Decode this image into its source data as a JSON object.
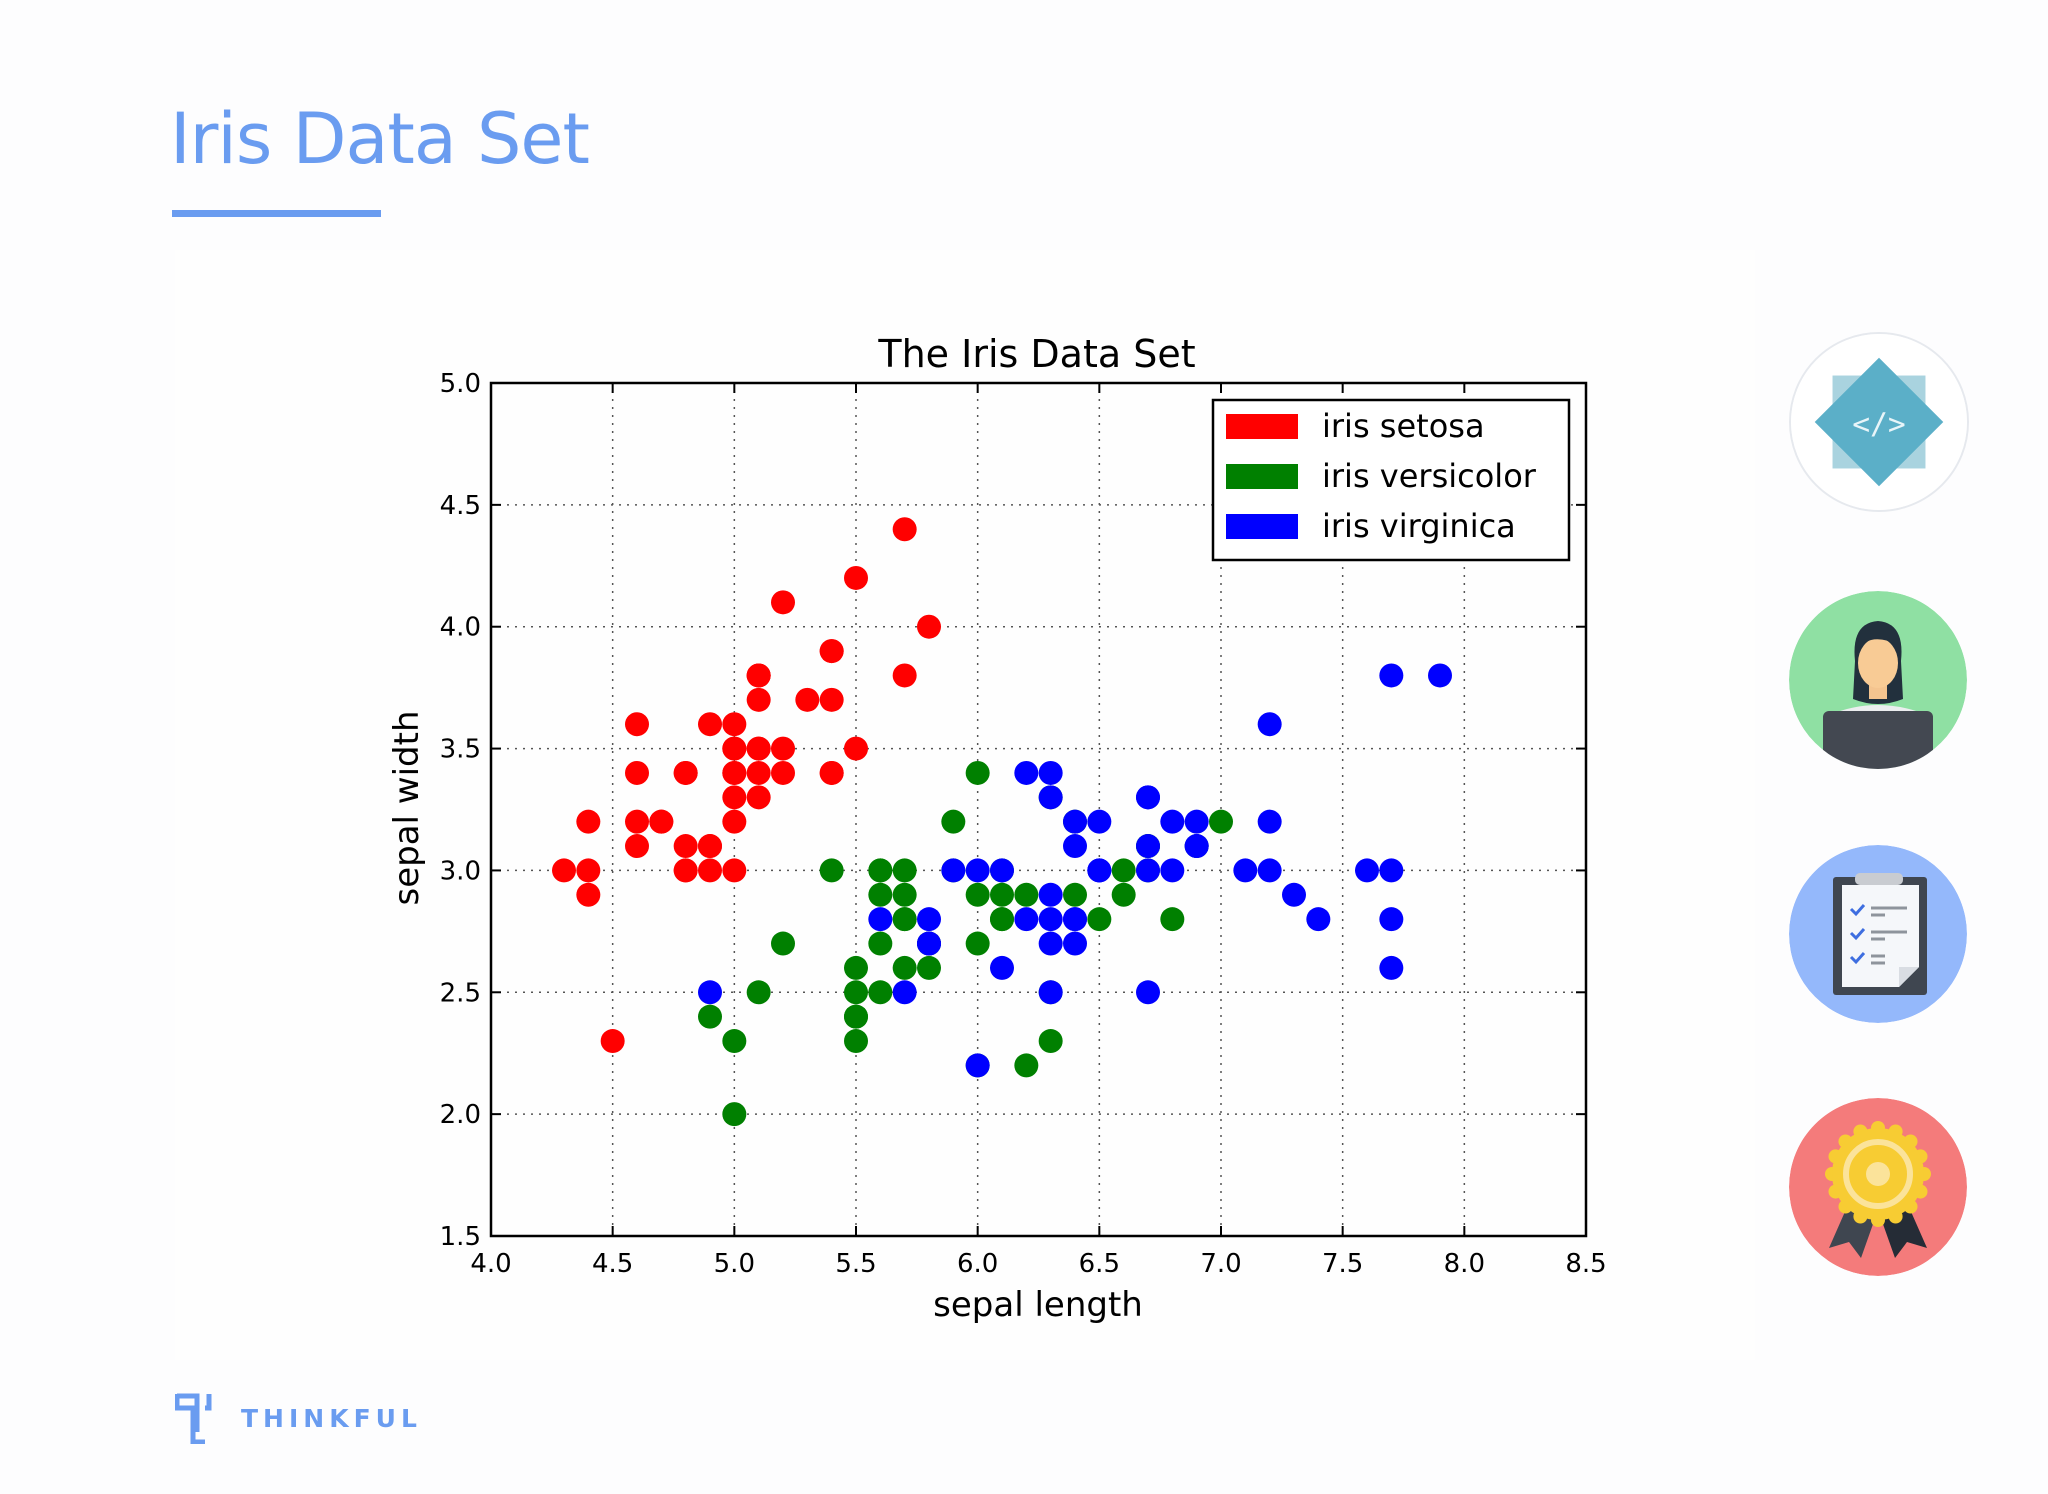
{
  "slide": {
    "title": "Iris Data Set",
    "accent_color": "#6a9cf0"
  },
  "brand": {
    "name": "THINKFUL",
    "icon": "thinkful-logo-icon"
  },
  "side_icons": [
    {
      "name": "code-icon",
      "bg": "#ffffff"
    },
    {
      "name": "developer-avatar-icon",
      "bg": "#8fe0a3"
    },
    {
      "name": "checklist-clipboard-icon",
      "bg": "#94b8fb"
    },
    {
      "name": "award-badge-icon",
      "bg": "#f47b7b"
    }
  ],
  "chart_data": {
    "type": "scatter",
    "title": "The Iris Data Set",
    "xlabel": "sepal length",
    "ylabel": "sepal width",
    "xlim": [
      4.0,
      8.5
    ],
    "ylim": [
      1.5,
      5.0
    ],
    "xticks": [
      "4.0",
      "4.5",
      "5.0",
      "5.5",
      "6.0",
      "6.5",
      "7.0",
      "7.5",
      "8.0",
      "8.5"
    ],
    "yticks": [
      "1.5",
      "2.0",
      "2.5",
      "3.0",
      "3.5",
      "4.0",
      "4.5",
      "5.0"
    ],
    "grid": true,
    "legend_position": "upper right",
    "series": [
      {
        "name": "iris setosa",
        "color": "#ff0000",
        "points": [
          [
            5.1,
            3.5
          ],
          [
            4.9,
            3.0
          ],
          [
            4.7,
            3.2
          ],
          [
            4.6,
            3.1
          ],
          [
            5.0,
            3.6
          ],
          [
            5.4,
            3.9
          ],
          [
            4.6,
            3.4
          ],
          [
            5.0,
            3.4
          ],
          [
            4.4,
            2.9
          ],
          [
            4.9,
            3.1
          ],
          [
            5.4,
            3.7
          ],
          [
            4.8,
            3.4
          ],
          [
            4.8,
            3.0
          ],
          [
            4.3,
            3.0
          ],
          [
            5.8,
            4.0
          ],
          [
            5.7,
            4.4
          ],
          [
            5.4,
            3.9
          ],
          [
            5.1,
            3.5
          ],
          [
            5.7,
            3.8
          ],
          [
            5.1,
            3.8
          ],
          [
            5.4,
            3.4
          ],
          [
            5.1,
            3.7
          ],
          [
            4.6,
            3.6
          ],
          [
            5.1,
            3.3
          ],
          [
            4.8,
            3.4
          ],
          [
            5.0,
            3.0
          ],
          [
            5.0,
            3.4
          ],
          [
            5.2,
            3.5
          ],
          [
            5.2,
            3.4
          ],
          [
            4.7,
            3.2
          ],
          [
            4.8,
            3.1
          ],
          [
            5.4,
            3.4
          ],
          [
            5.2,
            4.1
          ],
          [
            5.5,
            4.2
          ],
          [
            4.9,
            3.1
          ],
          [
            5.0,
            3.2
          ],
          [
            5.5,
            3.5
          ],
          [
            4.9,
            3.6
          ],
          [
            4.4,
            3.0
          ],
          [
            5.1,
            3.4
          ],
          [
            5.0,
            3.5
          ],
          [
            4.5,
            2.3
          ],
          [
            4.4,
            3.2
          ],
          [
            5.0,
            3.5
          ],
          [
            5.1,
            3.8
          ],
          [
            4.8,
            3.0
          ],
          [
            5.1,
            3.8
          ],
          [
            4.6,
            3.2
          ],
          [
            5.3,
            3.7
          ],
          [
            5.0,
            3.3
          ]
        ]
      },
      {
        "name": "iris versicolor",
        "color": "#008000",
        "points": [
          [
            7.0,
            3.2
          ],
          [
            6.4,
            3.2
          ],
          [
            6.9,
            3.1
          ],
          [
            5.5,
            2.3
          ],
          [
            6.5,
            2.8
          ],
          [
            5.7,
            2.8
          ],
          [
            6.3,
            3.3
          ],
          [
            4.9,
            2.4
          ],
          [
            6.6,
            2.9
          ],
          [
            5.2,
            2.7
          ],
          [
            5.0,
            2.0
          ],
          [
            5.9,
            3.0
          ],
          [
            6.0,
            2.2
          ],
          [
            6.1,
            2.9
          ],
          [
            5.6,
            2.9
          ],
          [
            6.7,
            3.1
          ],
          [
            5.6,
            3.0
          ],
          [
            5.8,
            2.7
          ],
          [
            6.2,
            2.2
          ],
          [
            5.6,
            2.5
          ],
          [
            5.9,
            3.2
          ],
          [
            6.1,
            2.8
          ],
          [
            6.3,
            2.5
          ],
          [
            6.1,
            2.8
          ],
          [
            6.4,
            2.9
          ],
          [
            6.6,
            3.0
          ],
          [
            6.8,
            2.8
          ],
          [
            6.7,
            3.0
          ],
          [
            6.0,
            2.9
          ],
          [
            5.7,
            2.6
          ],
          [
            5.5,
            2.4
          ],
          [
            5.5,
            2.4
          ],
          [
            5.8,
            2.7
          ],
          [
            6.0,
            2.7
          ],
          [
            5.4,
            3.0
          ],
          [
            6.0,
            3.4
          ],
          [
            6.7,
            3.1
          ],
          [
            6.3,
            2.3
          ],
          [
            5.6,
            3.0
          ],
          [
            5.5,
            2.5
          ],
          [
            5.5,
            2.6
          ],
          [
            6.1,
            3.0
          ],
          [
            5.8,
            2.6
          ],
          [
            5.0,
            2.3
          ],
          [
            5.6,
            2.7
          ],
          [
            5.7,
            3.0
          ],
          [
            5.7,
            2.9
          ],
          [
            6.2,
            2.9
          ],
          [
            5.1,
            2.5
          ],
          [
            5.7,
            2.8
          ]
        ]
      },
      {
        "name": "iris virginica",
        "color": "#0000ff",
        "points": [
          [
            6.3,
            3.3
          ],
          [
            5.8,
            2.7
          ],
          [
            7.1,
            3.0
          ],
          [
            6.3,
            2.9
          ],
          [
            6.5,
            3.0
          ],
          [
            7.6,
            3.0
          ],
          [
            4.9,
            2.5
          ],
          [
            7.3,
            2.9
          ],
          [
            6.7,
            2.5
          ],
          [
            7.2,
            3.6
          ],
          [
            6.5,
            3.2
          ],
          [
            6.4,
            2.7
          ],
          [
            6.8,
            3.0
          ],
          [
            5.7,
            2.5
          ],
          [
            5.8,
            2.8
          ],
          [
            6.4,
            3.2
          ],
          [
            6.5,
            3.0
          ],
          [
            7.7,
            3.8
          ],
          [
            7.7,
            2.6
          ],
          [
            6.0,
            2.2
          ],
          [
            6.9,
            3.2
          ],
          [
            5.6,
            2.8
          ],
          [
            7.7,
            2.8
          ],
          [
            6.3,
            2.7
          ],
          [
            6.7,
            3.3
          ],
          [
            7.2,
            3.2
          ],
          [
            6.2,
            2.8
          ],
          [
            6.1,
            3.0
          ],
          [
            6.4,
            2.8
          ],
          [
            7.2,
            3.0
          ],
          [
            7.4,
            2.8
          ],
          [
            7.9,
            3.8
          ],
          [
            6.4,
            2.8
          ],
          [
            6.3,
            2.8
          ],
          [
            6.1,
            2.6
          ],
          [
            7.7,
            3.0
          ],
          [
            6.3,
            3.4
          ],
          [
            6.4,
            3.1
          ],
          [
            6.0,
            3.0
          ],
          [
            6.9,
            3.1
          ],
          [
            6.7,
            3.1
          ],
          [
            6.9,
            3.1
          ],
          [
            5.8,
            2.7
          ],
          [
            6.8,
            3.2
          ],
          [
            6.7,
            3.3
          ],
          [
            6.7,
            3.0
          ],
          [
            6.3,
            2.5
          ],
          [
            6.5,
            3.0
          ],
          [
            6.2,
            3.4
          ],
          [
            5.9,
            3.0
          ]
        ]
      }
    ]
  }
}
